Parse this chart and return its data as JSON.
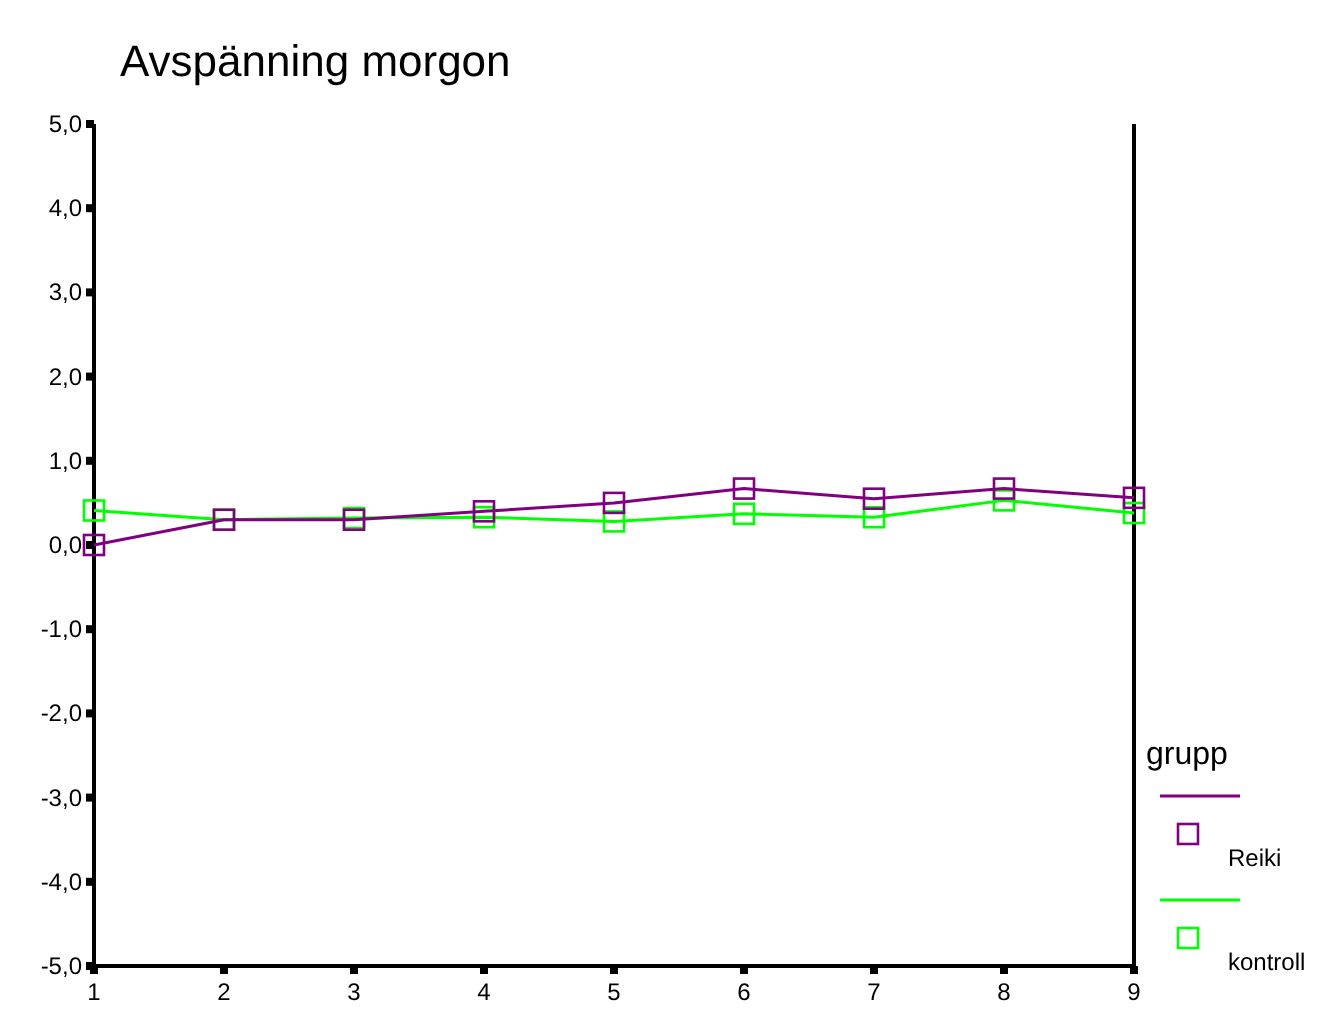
{
  "chart_data": {
    "type": "line",
    "title": "Avspänning morgon",
    "legend_title": "grupp",
    "x": [
      1,
      2,
      3,
      4,
      5,
      6,
      7,
      8,
      9
    ],
    "xlim": [
      1,
      9
    ],
    "xticks": [
      1,
      2,
      3,
      4,
      5,
      6,
      7,
      8,
      9
    ],
    "ylim": [
      -5,
      5
    ],
    "yticks": [
      {
        "value": -5,
        "label": "-5,0"
      },
      {
        "value": -4,
        "label": "-4,0"
      },
      {
        "value": -3,
        "label": "-3,0"
      },
      {
        "value": -2,
        "label": "-2,0"
      },
      {
        "value": -1,
        "label": "-1,0"
      },
      {
        "value": 0,
        "label": "0,0"
      },
      {
        "value": 1,
        "label": "1,0"
      },
      {
        "value": 2,
        "label": "2,0"
      },
      {
        "value": 3,
        "label": "3,0"
      },
      {
        "value": 4,
        "label": "4,0"
      },
      {
        "value": 5,
        "label": "5,0"
      }
    ],
    "series": [
      {
        "name": "Reiki",
        "color": "#800080",
        "values": [
          0.0,
          0.3,
          0.3,
          0.4,
          0.5,
          0.67,
          0.55,
          0.67,
          0.56
        ]
      },
      {
        "name": "kontroll",
        "color": "#00ff00",
        "values": [
          0.41,
          0.3,
          0.32,
          0.33,
          0.28,
          0.37,
          0.33,
          0.53,
          0.38
        ]
      }
    ],
    "marker": "square",
    "line_style": "solid",
    "grid": false,
    "legend": "right"
  }
}
